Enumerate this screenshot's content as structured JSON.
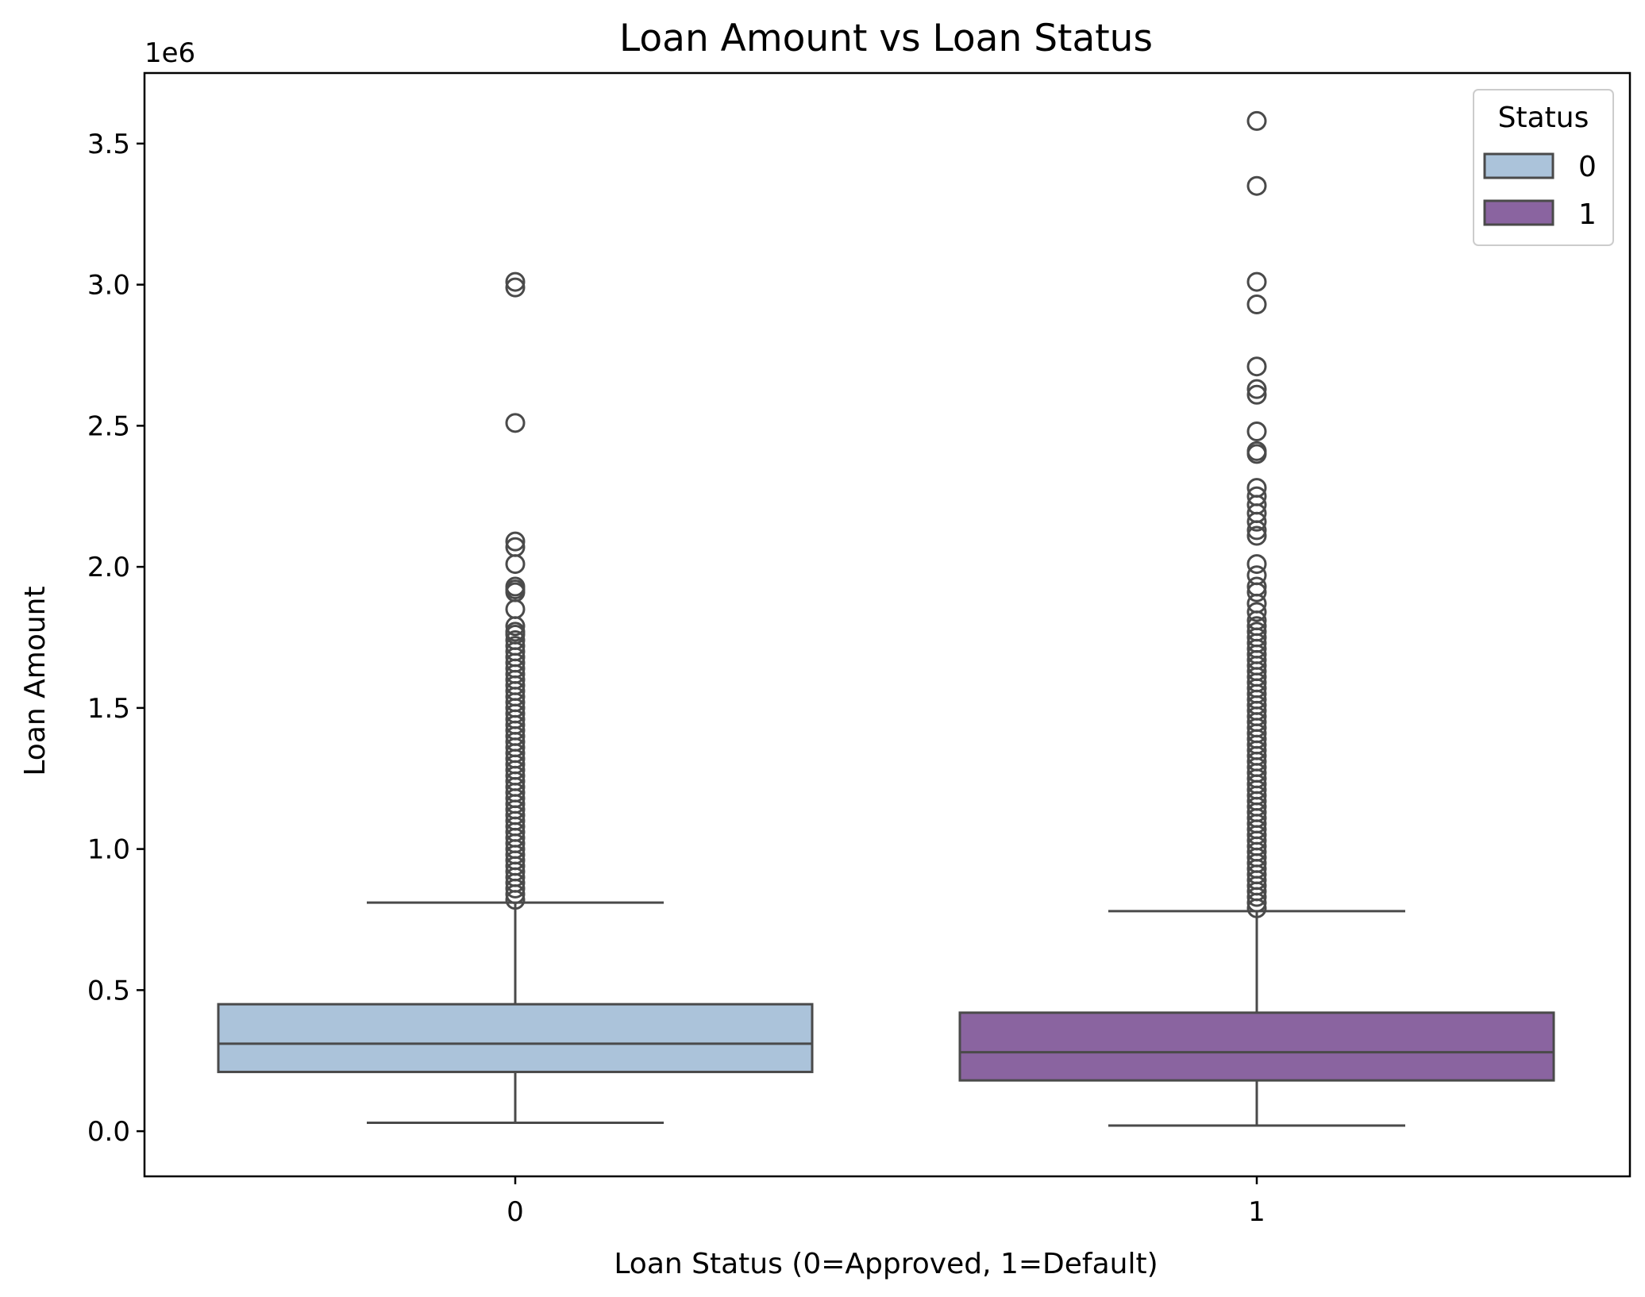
{
  "chart_data": {
    "type": "boxplot",
    "title": "Loan Amount vs Loan Status",
    "xlabel": "Loan Status (0=Approved, 1=Default)",
    "ylabel": "Loan Amount",
    "y_offset_label": "1e6",
    "ylim": [
      -0.16,
      3.75
    ],
    "y_ticks": [
      "0.0",
      "0.5",
      "1.0",
      "1.5",
      "2.0",
      "2.5",
      "3.0",
      "3.5"
    ],
    "y_tick_values": [
      0.0,
      0.5,
      1.0,
      1.5,
      2.0,
      2.5,
      3.0,
      3.5
    ],
    "categories": [
      "0",
      "1"
    ],
    "grid": false,
    "legend": {
      "title": "Status",
      "placement": "top-right",
      "entries": [
        {
          "label": "0",
          "color": "#abc3da"
        },
        {
          "label": "1",
          "color": "#8a64a0"
        }
      ]
    },
    "series": [
      {
        "category": "0",
        "color": "#abc3da",
        "whisker_low": 0.03,
        "q1": 0.21,
        "median": 0.31,
        "q3": 0.45,
        "whisker_high": 0.81,
        "outliers": [
          3.01,
          2.99,
          2.51,
          2.09,
          2.07,
          2.01,
          1.93,
          1.92,
          1.91,
          1.85,
          1.79,
          1.77,
          1.76,
          1.74,
          1.72,
          1.7,
          1.68,
          1.66,
          1.64,
          1.62,
          1.6,
          1.58,
          1.56,
          1.54,
          1.52,
          1.5,
          1.48,
          1.46,
          1.44,
          1.42,
          1.4,
          1.38,
          1.36,
          1.34,
          1.32,
          1.3,
          1.28,
          1.26,
          1.24,
          1.22,
          1.2,
          1.18,
          1.16,
          1.14,
          1.12,
          1.1,
          1.08,
          1.06,
          1.04,
          1.02,
          1.0,
          0.98,
          0.96,
          0.94,
          0.92,
          0.9,
          0.88,
          0.86,
          0.84,
          0.82
        ]
      },
      {
        "category": "1",
        "color": "#8a64a0",
        "whisker_low": 0.02,
        "q1": 0.18,
        "median": 0.28,
        "q3": 0.42,
        "whisker_high": 0.78,
        "outliers": [
          3.58,
          3.35,
          3.01,
          2.93,
          2.71,
          2.63,
          2.61,
          2.48,
          2.41,
          2.4,
          2.28,
          2.25,
          2.22,
          2.19,
          2.16,
          2.13,
          2.11,
          2.01,
          1.97,
          1.93,
          1.91,
          1.87,
          1.84,
          1.81,
          1.79,
          1.77,
          1.75,
          1.73,
          1.71,
          1.69,
          1.67,
          1.65,
          1.63,
          1.61,
          1.59,
          1.57,
          1.55,
          1.53,
          1.51,
          1.49,
          1.47,
          1.45,
          1.43,
          1.41,
          1.39,
          1.37,
          1.35,
          1.33,
          1.31,
          1.29,
          1.27,
          1.25,
          1.23,
          1.21,
          1.19,
          1.17,
          1.15,
          1.13,
          1.11,
          1.09,
          1.07,
          1.05,
          1.03,
          1.01,
          0.99,
          0.97,
          0.95,
          0.93,
          0.91,
          0.89,
          0.87,
          0.85,
          0.83,
          0.81,
          0.79
        ]
      }
    ]
  }
}
